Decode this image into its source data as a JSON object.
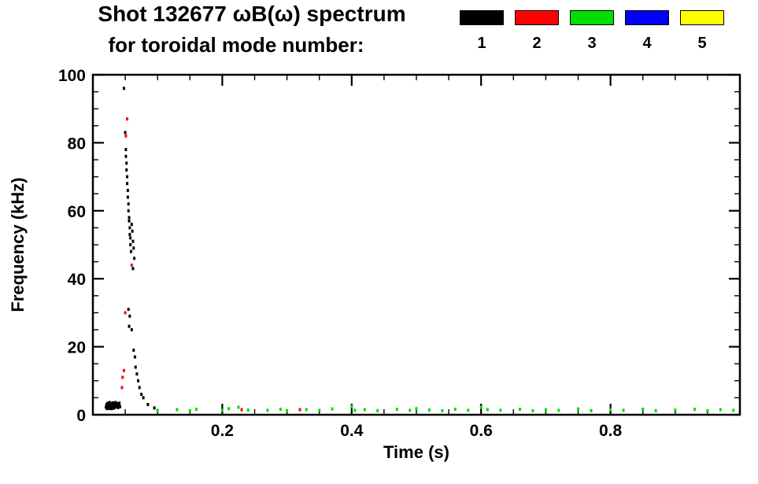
{
  "header": {
    "title_line1": "Shot 132677 ωB(ω) spectrum",
    "title_line2": "for toroidal mode number:"
  },
  "legend": {
    "position": "top-right",
    "items": [
      {
        "label": "1",
        "color": "#000000"
      },
      {
        "label": "2",
        "color": "#ff0000"
      },
      {
        "label": "3",
        "color": "#00dd00"
      },
      {
        "label": "4",
        "color": "#0000ff"
      },
      {
        "label": "5",
        "color": "#ffff00"
      }
    ]
  },
  "chart_data": {
    "type": "scatter",
    "title": "Shot 132677 ωB(ω) spectrum for toroidal mode number: 1 2 3 4 5",
    "xlabel": "Time (s)",
    "ylabel": "Frequency (kHz)",
    "xlim": [
      0,
      1.0
    ],
    "ylim": [
      0,
      100
    ],
    "xticks": [
      0.2,
      0.4,
      0.6,
      0.8
    ],
    "yticks": [
      0,
      20,
      40,
      60,
      80,
      100
    ],
    "x_minor_step": 0.05,
    "y_minor_step": 5,
    "grid": false,
    "legend_position": "top-right",
    "series": [
      {
        "name": "n=1",
        "color": "#000000",
        "points": [
          [
            0.02,
            2.2
          ],
          [
            0.021,
            3.0
          ],
          [
            0.022,
            1.8
          ],
          [
            0.022,
            2.6
          ],
          [
            0.023,
            3.4
          ],
          [
            0.023,
            2.1
          ],
          [
            0.024,
            2.8
          ],
          [
            0.025,
            1.9
          ],
          [
            0.025,
            3.1
          ],
          [
            0.026,
            2.4
          ],
          [
            0.026,
            3.6
          ],
          [
            0.027,
            2.0
          ],
          [
            0.027,
            2.9
          ],
          [
            0.028,
            3.3
          ],
          [
            0.028,
            1.8
          ],
          [
            0.029,
            2.6
          ],
          [
            0.03,
            3.0
          ],
          [
            0.03,
            2.2
          ],
          [
            0.031,
            3.5
          ],
          [
            0.031,
            1.9
          ],
          [
            0.032,
            2.7
          ],
          [
            0.033,
            3.2
          ],
          [
            0.033,
            2.0
          ],
          [
            0.034,
            2.8
          ],
          [
            0.035,
            3.6
          ],
          [
            0.035,
            2.3
          ],
          [
            0.036,
            3.0
          ],
          [
            0.037,
            2.5
          ],
          [
            0.038,
            3.3
          ],
          [
            0.039,
            2.1
          ],
          [
            0.04,
            2.8
          ],
          [
            0.041,
            3.4
          ],
          [
            0.042,
            2.4
          ],
          [
            0.048,
            96
          ],
          [
            0.05,
            83
          ],
          [
            0.051,
            78
          ],
          [
            0.051,
            76
          ],
          [
            0.052,
            74
          ],
          [
            0.052,
            72
          ],
          [
            0.053,
            70
          ],
          [
            0.053,
            68
          ],
          [
            0.054,
            66
          ],
          [
            0.054,
            64
          ],
          [
            0.055,
            62
          ],
          [
            0.055,
            60
          ],
          [
            0.056,
            58
          ],
          [
            0.056,
            57
          ],
          [
            0.057,
            55
          ],
          [
            0.057,
            53
          ],
          [
            0.058,
            52
          ],
          [
            0.058,
            50
          ],
          [
            0.059,
            48
          ],
          [
            0.06,
            56
          ],
          [
            0.061,
            54
          ],
          [
            0.062,
            51
          ],
          [
            0.063,
            49
          ],
          [
            0.064,
            46
          ],
          [
            0.055,
            31
          ],
          [
            0.057,
            29
          ],
          [
            0.056,
            26
          ],
          [
            0.06,
            25
          ],
          [
            0.062,
            43
          ],
          [
            0.063,
            19
          ],
          [
            0.065,
            17
          ],
          [
            0.066,
            14
          ],
          [
            0.068,
            12
          ],
          [
            0.07,
            10
          ],
          [
            0.072,
            8
          ],
          [
            0.075,
            6
          ],
          [
            0.078,
            5
          ],
          [
            0.085,
            3
          ],
          [
            0.095,
            2
          ]
        ]
      },
      {
        "name": "n=2",
        "color": "#ff0000",
        "points": [
          [
            0.045,
            8
          ],
          [
            0.046,
            11
          ],
          [
            0.048,
            13
          ],
          [
            0.053,
            87
          ],
          [
            0.051,
            82
          ],
          [
            0.05,
            30
          ],
          [
            0.06,
            44
          ],
          [
            0.23,
            1.5
          ],
          [
            0.32,
            1.5
          ]
        ]
      },
      {
        "name": "n=3",
        "color": "#00dd00",
        "points": [
          [
            0.1,
            1.3
          ],
          [
            0.13,
            1.5
          ],
          [
            0.15,
            1.2
          ],
          [
            0.16,
            1.6
          ],
          [
            0.2,
            1.3
          ],
          [
            0.21,
            1.8
          ],
          [
            0.225,
            2.2
          ],
          [
            0.24,
            1.4
          ],
          [
            0.27,
            1.3
          ],
          [
            0.29,
            1.6
          ],
          [
            0.3,
            1.2
          ],
          [
            0.33,
            1.5
          ],
          [
            0.35,
            1.3
          ],
          [
            0.37,
            1.7
          ],
          [
            0.4,
            2.4
          ],
          [
            0.405,
            1.3
          ],
          [
            0.42,
            1.5
          ],
          [
            0.44,
            1.2
          ],
          [
            0.47,
            1.6
          ],
          [
            0.49,
            1.3
          ],
          [
            0.5,
            1.8
          ],
          [
            0.52,
            1.4
          ],
          [
            0.54,
            1.2
          ],
          [
            0.56,
            1.6
          ],
          [
            0.58,
            1.3
          ],
          [
            0.6,
            2.2
          ],
          [
            0.61,
            1.5
          ],
          [
            0.63,
            1.3
          ],
          [
            0.66,
            1.6
          ],
          [
            0.68,
            1.2
          ],
          [
            0.7,
            1.5
          ],
          [
            0.72,
            1.3
          ],
          [
            0.75,
            1.7
          ],
          [
            0.77,
            1.2
          ],
          [
            0.8,
            1.5
          ],
          [
            0.82,
            1.3
          ],
          [
            0.85,
            1.6
          ],
          [
            0.87,
            1.2
          ],
          [
            0.9,
            1.4
          ],
          [
            0.93,
            1.6
          ],
          [
            0.95,
            1.2
          ],
          [
            0.97,
            1.5
          ],
          [
            0.99,
            1.3
          ]
        ]
      },
      {
        "name": "n=4",
        "color": "#0000ff",
        "points": []
      },
      {
        "name": "n=5",
        "color": "#ffff00",
        "points": []
      }
    ]
  }
}
